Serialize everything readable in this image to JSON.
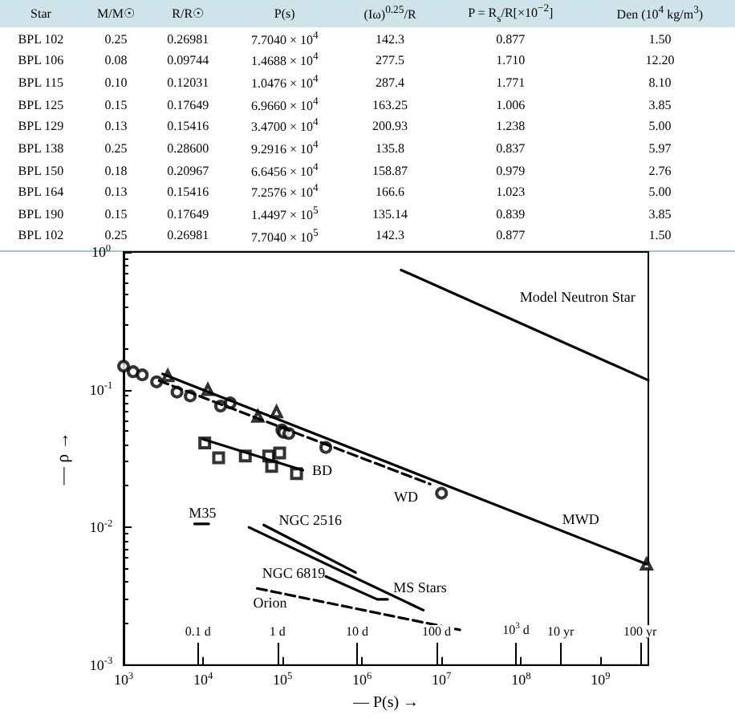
{
  "chart_data": [
    {
      "type": "other",
      "categories": [
        "Star",
        "M/M☉",
        "R/R☉",
        "P(s)",
        "(Iω)$^{0.25}$/R",
        "P = R$_{s}$/R[×10$^{−2}$]",
        "Den (10$^{4}$ kg/m$^{3}$)"
      ],
      "cell_labels": [
        [
          "BPL 102",
          "0.25",
          "0.26981",
          "7.7040 × 10$^{4}$",
          "142.3",
          "0.877",
          "1.50"
        ],
        [
          "BPL 106",
          "0.08",
          "0.09744",
          "1.4688 × 10$^{4}$",
          "277.5",
          "1.710",
          "12.20"
        ],
        [
          "BPL 115",
          "0.10",
          "0.12031",
          "1.0476 × 10$^{4}$",
          "287.4",
          "1.771",
          "8.10"
        ],
        [
          "BPL 125",
          "0.15",
          "0.17649",
          "6.9660 × 10$^{4}$",
          "163.25",
          "1.006",
          "3.85"
        ],
        [
          "BPL 129",
          "0.13",
          "0.15416",
          "3.4700 × 10$^{4}$",
          "200.93",
          "1.238",
          "5.00"
        ],
        [
          "BPL 138",
          "0.25",
          "0.28600",
          "9.2916 × 10$^{4}$",
          "135.8",
          "0.837",
          "5.97"
        ],
        [
          "BPL 150",
          "0.18",
          "0.20967",
          "6.6456 × 10$^{4}$",
          "158.87",
          "0.979",
          "2.76"
        ],
        [
          "BPL 164",
          "0.13",
          "0.15416",
          "7.2576 × 10$^{4}$",
          "166.6",
          "1.023",
          "5.00"
        ],
        [
          "BPL 190",
          "0.15",
          "0.17649",
          "1.4497 × 10$^{5}$",
          "135.14",
          "0.839",
          "3.85"
        ],
        [
          "BPL 102",
          "0.25",
          "0.26981",
          "7.7040 × 10$^{5}$",
          "142.3",
          "0.877",
          "1.50"
        ]
      ]
    },
    {
      "type": "line",
      "xlabel": "— P(s) →",
      "ylabel": "— ρ →",
      "log": "xy",
      "xlim": [
        1000,
        4000000000
      ],
      "ylim": [
        0.001,
        1
      ],
      "xticks": [
        {
          "value": 1000,
          "label": "10$^{3}$"
        },
        {
          "value": 10000,
          "label": "10$^{4}$"
        },
        {
          "value": 100000,
          "label": "10$^{5}$"
        },
        {
          "value": 1000000,
          "label": "10$^{6}$"
        },
        {
          "value": 10000000,
          "label": "10$^{7}$"
        },
        {
          "value": 100000000,
          "label": "10$^{8}$"
        },
        {
          "value": 1000000000,
          "label": "10$^{9}$"
        }
      ],
      "yticks": [
        {
          "value": 0.001,
          "label": "10$^{-3}$"
        },
        {
          "value": 0.01,
          "label": "10$^{-2}$"
        },
        {
          "value": 0.1,
          "label": "10$^{-1}$"
        },
        {
          "value": 1,
          "label": "10$^{0}$"
        }
      ],
      "ref_lines": [
        {
          "axis": "x",
          "value": 8640,
          "label": "0.1 d"
        },
        {
          "axis": "x",
          "value": 86400,
          "label": "1 d"
        },
        {
          "axis": "x",
          "value": 864000,
          "label": "10 d"
        },
        {
          "axis": "x",
          "value": 8640000,
          "label": "100 d"
        },
        {
          "axis": "x",
          "value": 86400000,
          "label": "10$^{3}$ d"
        },
        {
          "axis": "x",
          "value": 315000000,
          "label": "10 yr"
        },
        {
          "axis": "x",
          "value": 3150000000,
          "label": "100 yr"
        }
      ],
      "series": [
        {
          "type": "line",
          "name": "Model Neutron Star",
          "marker": "none",
          "line_style": "solid",
          "color": "#000000",
          "x": [
            3100000,
            4000000000
          ],
          "values": [
            0.74,
            0.117
          ]
        },
        {
          "type": "line",
          "name": "MWD",
          "marker": "none",
          "line_style": "solid",
          "color": "#000000",
          "x": [
            3100,
            3800000000
          ],
          "values": [
            0.13,
            0.0054
          ]
        },
        {
          "type": "line",
          "name": "WD",
          "marker": "none",
          "line_style": "dashed",
          "color": "#000000",
          "x": [
            2800,
            7200000
          ],
          "values": [
            0.116,
            0.0206
          ]
        },
        {
          "type": "scatter",
          "marker": "circle",
          "color": "#000000",
          "x": [
            1000,
            1320,
            1720,
            2600,
            4700,
            6900,
            16600,
            22000,
            98000,
            103000,
            120000,
            350000,
            10000000
          ],
          "values": [
            0.148,
            0.135,
            0.128,
            0.114,
            0.096,
            0.09,
            0.076,
            0.08,
            0.051,
            0.049,
            0.048,
            0.038,
            0.0177
          ]
        },
        {
          "type": "scatter",
          "marker": "triangle",
          "color": "#000000",
          "x": [
            3600,
            11500,
            49000,
            84000,
            3800000000
          ],
          "values": [
            0.126,
            0.1,
            0.064,
            0.069,
            0.0054
          ]
        },
        {
          "type": "scatter",
          "marker": "square",
          "color": "#000000",
          "x": [
            10500,
            15700,
            34000,
            67000,
            73000,
            92000,
            150000
          ],
          "values": [
            0.041,
            0.032,
            0.033,
            0.033,
            0.0277,
            0.0347,
            0.0245
          ]
        },
        {
          "type": "line",
          "name": "BD",
          "marker": "none",
          "line_style": "solid",
          "color": "#000000",
          "x": [
            9800,
            180000
          ],
          "values": [
            0.0438,
            0.026
          ]
        },
        {
          "type": "line",
          "name": "M35",
          "marker": "none",
          "line_style": "solid",
          "color": "#000000",
          "x": [
            7800,
            11800
          ],
          "values": [
            0.0106,
            0.0106
          ]
        },
        {
          "type": "line",
          "name": "NGC 2516",
          "marker": "none",
          "line_style": "solid",
          "color": "#000000",
          "x": [
            58000,
            830000
          ],
          "values": [
            0.0104,
            0.0047
          ]
        },
        {
          "type": "line",
          "name": "MS Stars",
          "marker": "none",
          "line_style": "solid",
          "color": "#000000",
          "x": [
            37800,
            5900000
          ],
          "values": [
            0.01,
            0.0025
          ]
        },
        {
          "type": "line",
          "name": "NGC 6819",
          "marker": "none",
          "line_style": "solid",
          "color": "#000000",
          "x": [
            350000,
            1550000,
            2100000
          ],
          "values": [
            0.0044,
            0.003,
            0.003
          ]
        },
        {
          "type": "line",
          "name": "Orion",
          "marker": "none",
          "line_style": "dashed",
          "color": "#000000",
          "x": [
            48000,
            17000000
          ],
          "values": [
            0.0036,
            0.0018
          ]
        }
      ]
    }
  ]
}
